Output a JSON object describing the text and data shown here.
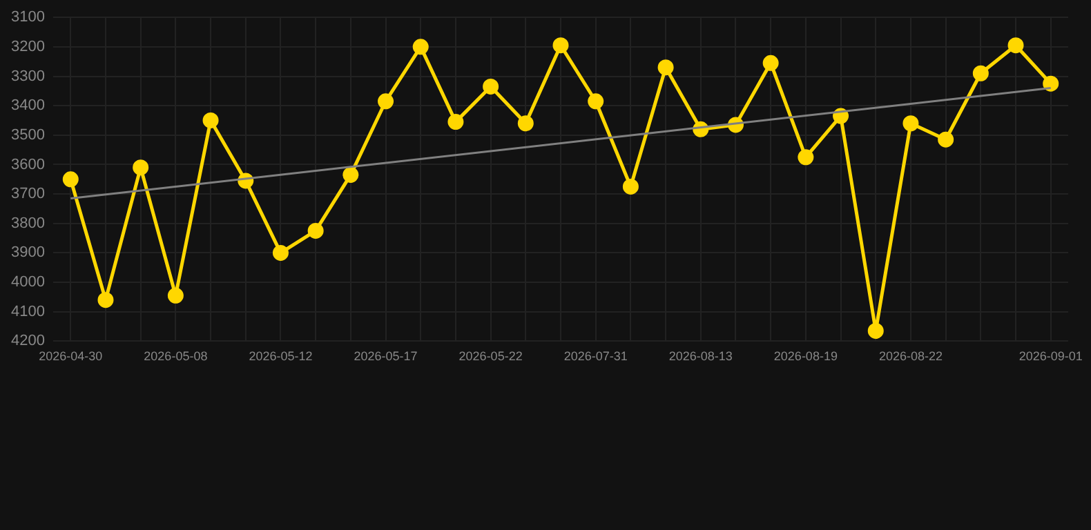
{
  "chart_data": {
    "type": "line",
    "categories": [
      "2026-04-30",
      null,
      null,
      "2026-05-08",
      null,
      null,
      "2026-05-12",
      null,
      null,
      "2026-05-17",
      null,
      null,
      "2026-05-22",
      null,
      null,
      "2026-07-31",
      null,
      null,
      "2026-08-13",
      null,
      null,
      "2026-08-19",
      null,
      null,
      "2026-08-22",
      null,
      null,
      null,
      "2026-09-01"
    ],
    "series": [
      {
        "color": "#ffd700",
        "values": [
          3650,
          4060,
          3610,
          4045,
          3450,
          3655,
          3900,
          3825,
          3635,
          3385,
          3200,
          3455,
          3335,
          3460,
          3195,
          3385,
          3675,
          3270,
          3480,
          3465,
          3255,
          3575,
          3435,
          4165,
          3460,
          3515,
          3290,
          3195,
          3325
        ]
      },
      {
        "type": "line",
        "color": "#808080",
        "marker": "none",
        "values": [
          3715,
          null,
          null,
          null,
          null,
          null,
          null,
          null,
          null,
          null,
          null,
          null,
          null,
          null,
          null,
          null,
          null,
          null,
          null,
          null,
          null,
          null,
          null,
          null,
          null,
          null,
          null,
          null,
          3340
        ]
      }
    ],
    "ylim": [
      4200,
      3100
    ],
    "yticks": [
      3100,
      3200,
      3300,
      3400,
      3500,
      3600,
      3700,
      3800,
      3900,
      4000,
      4100,
      4200
    ],
    "grid": true,
    "legend": false,
    "marker": "circle",
    "line_style": "solid"
  }
}
